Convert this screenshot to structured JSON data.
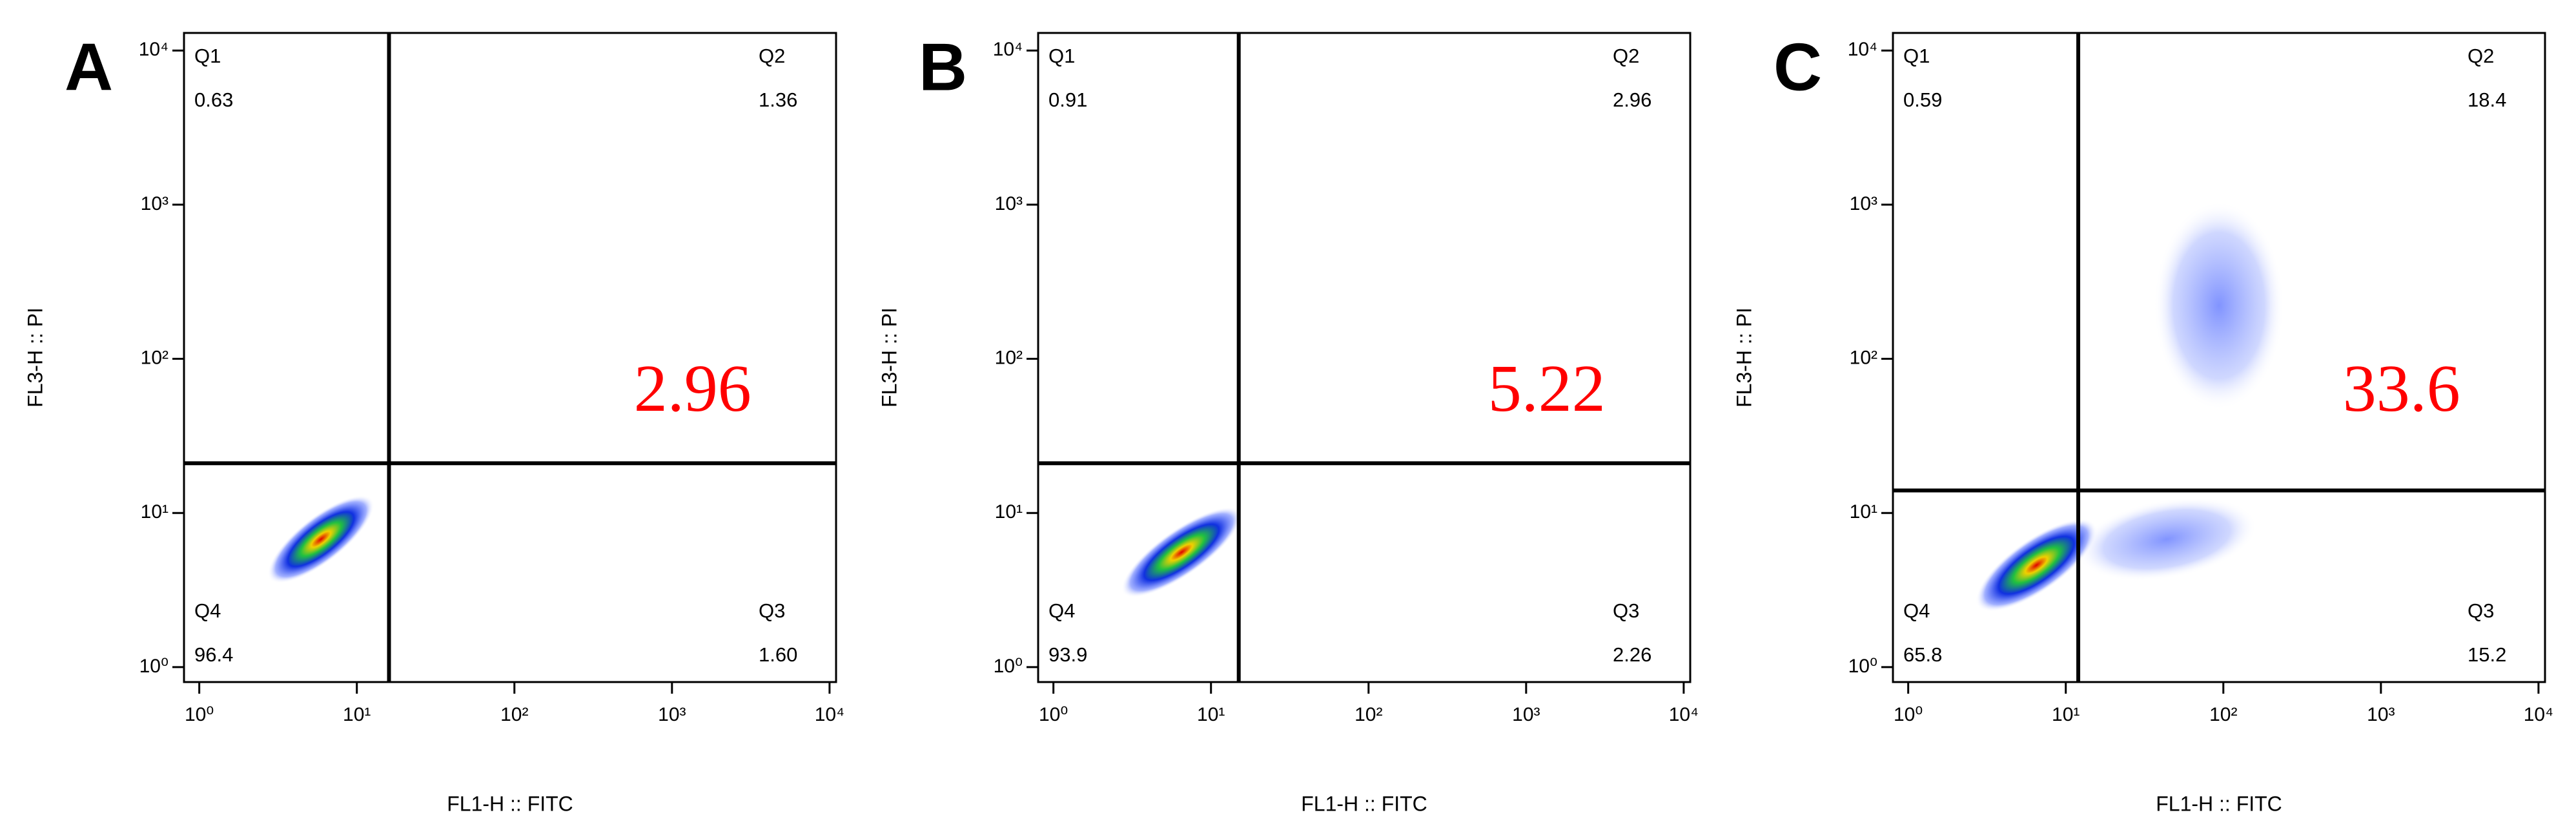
{
  "chart_data": [
    {
      "type": "scatter",
      "panel_label": "A",
      "x_label": "FL1-H :: FITC",
      "y_label": "FL3-H :: PI",
      "xscale": "log",
      "yscale": "log",
      "xlim": [
        0.8,
        11000
      ],
      "ylim": [
        0.8,
        13000
      ],
      "xticks": [
        {
          "value": 1,
          "label": "10⁰"
        },
        {
          "value": 10,
          "label": "10¹"
        },
        {
          "value": 100,
          "label": "10²"
        },
        {
          "value": 1000,
          "label": "10³"
        },
        {
          "value": 10000,
          "label": "10⁴"
        }
      ],
      "yticks": [
        {
          "value": 1,
          "label": "10⁰"
        },
        {
          "value": 10,
          "label": "10¹"
        },
        {
          "value": 100,
          "label": "10²"
        },
        {
          "value": 1000,
          "label": "10³"
        },
        {
          "value": 10000,
          "label": "10⁴"
        }
      ],
      "gate": {
        "x": 16,
        "y": 21,
        "color": "#000000"
      },
      "quadrants": {
        "names": [
          "Q1",
          "Q2",
          "Q3",
          "Q4"
        ],
        "values": [
          0.63,
          1.36,
          1.6,
          96.4
        ],
        "value_labels": [
          "0.63",
          "1.36",
          "1.60",
          "96.4"
        ]
      },
      "annotation": {
        "text": "2.96",
        "color": "#ff0000"
      }
    },
    {
      "type": "scatter",
      "panel_label": "B",
      "x_label": "FL1-H :: FITC",
      "y_label": "FL3-H :: PI",
      "xscale": "log",
      "yscale": "log",
      "xlim": [
        0.8,
        11000
      ],
      "ylim": [
        0.8,
        13000
      ],
      "xticks": [
        {
          "value": 1,
          "label": "10⁰"
        },
        {
          "value": 10,
          "label": "10¹"
        },
        {
          "value": 100,
          "label": "10²"
        },
        {
          "value": 1000,
          "label": "10³"
        },
        {
          "value": 10000,
          "label": "10⁴"
        }
      ],
      "yticks": [
        {
          "value": 1,
          "label": "10⁰"
        },
        {
          "value": 10,
          "label": "10¹"
        },
        {
          "value": 100,
          "label": "10²"
        },
        {
          "value": 1000,
          "label": "10³"
        },
        {
          "value": 10000,
          "label": "10⁴"
        }
      ],
      "gate": {
        "x": 15,
        "y": 21,
        "color": "#000000"
      },
      "quadrants": {
        "names": [
          "Q1",
          "Q2",
          "Q3",
          "Q4"
        ],
        "values": [
          0.91,
          2.96,
          2.26,
          93.9
        ],
        "value_labels": [
          "0.91",
          "2.96",
          "2.26",
          "93.9"
        ]
      },
      "annotation": {
        "text": "5.22",
        "color": "#ff0000"
      }
    },
    {
      "type": "scatter",
      "panel_label": "C",
      "x_label": "FL1-H :: FITC",
      "y_label": "FL3-H :: PI",
      "xscale": "log",
      "yscale": "log",
      "xlim": [
        0.8,
        11000
      ],
      "ylim": [
        0.8,
        13000
      ],
      "xticks": [
        {
          "value": 1,
          "label": "10⁰"
        },
        {
          "value": 10,
          "label": "10¹"
        },
        {
          "value": 100,
          "label": "10²"
        },
        {
          "value": 1000,
          "label": "10³"
        },
        {
          "value": 10000,
          "label": "10⁴"
        }
      ],
      "yticks": [
        {
          "value": 1,
          "label": "10⁰"
        },
        {
          "value": 10,
          "label": "10¹"
        },
        {
          "value": 100,
          "label": "10²"
        },
        {
          "value": 1000,
          "label": "10³"
        },
        {
          "value": 10000,
          "label": "10⁴"
        }
      ],
      "gate": {
        "x": 12,
        "y": 14,
        "color": "#000000"
      },
      "quadrants": {
        "names": [
          "Q1",
          "Q2",
          "Q3",
          "Q4"
        ],
        "values": [
          0.59,
          18.4,
          15.2,
          65.8
        ],
        "value_labels": [
          "0.59",
          "18.4",
          "15.2",
          "65.8"
        ]
      },
      "annotation": {
        "text": "33.6",
        "color": "#ff0000"
      }
    }
  ]
}
